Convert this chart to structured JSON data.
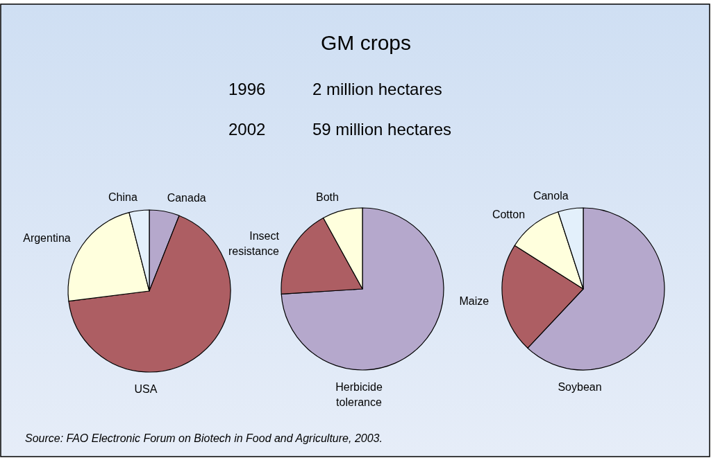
{
  "chart_data": [
    {
      "type": "other",
      "title": "GM crops",
      "annotations": [
        "1996",
        "2 million hectares",
        "2002",
        "59 million hectares",
        "Source: FAO Electronic Forum on Biotech in Food and Agriculture, 2003."
      ]
    },
    {
      "type": "pie",
      "categories": [
        "Canada",
        "USA",
        "Argentina",
        "China"
      ],
      "values": [
        6,
        67,
        23,
        4
      ],
      "colors": [
        "#b5a8cc",
        "#ad5e63",
        "#ffffdd",
        "#e3f0fb"
      ]
    },
    {
      "type": "pie",
      "categories": [
        "Herbicide tolerance",
        "Insect resistance",
        "Both"
      ],
      "values": [
        74,
        18,
        8
      ],
      "colors": [
        "#b5a8cc",
        "#ad5e63",
        "#ffffdd"
      ]
    },
    {
      "type": "pie",
      "categories": [
        "Soybean",
        "Maize",
        "Cotton",
        "Canola"
      ],
      "values": [
        62,
        22,
        11,
        5
      ],
      "colors": [
        "#b5a8cc",
        "#ad5e63",
        "#ffffdd",
        "#e3f0fb"
      ]
    }
  ]
}
